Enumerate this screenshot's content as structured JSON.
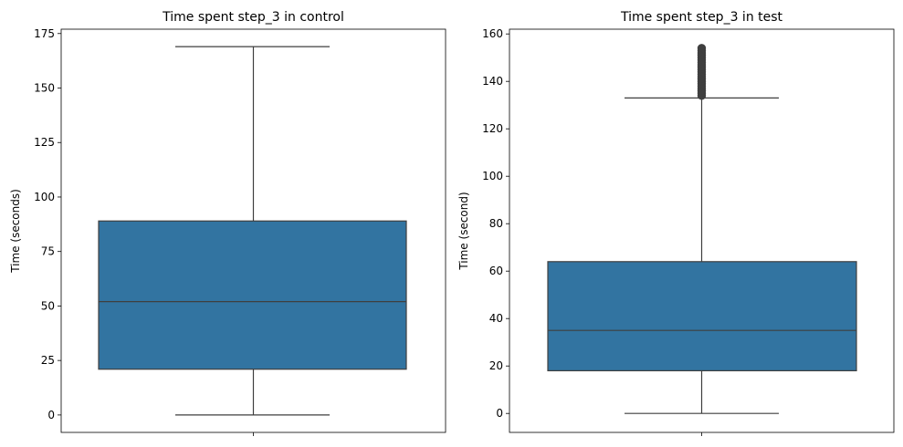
{
  "chart_data": [
    {
      "type": "box",
      "title": "Time spent step_3 in control",
      "xlabel": "",
      "ylabel": "Time (seconds)",
      "ylim": [
        -8,
        177
      ],
      "yticks": [
        0,
        25,
        50,
        75,
        100,
        125,
        150,
        175
      ],
      "box": {
        "whisker_low": 0,
        "q1": 21,
        "median": 52,
        "q3": 89,
        "whisker_high": 169
      },
      "outliers": [],
      "color": "#3274a1",
      "line_color": "#3f3f3f"
    },
    {
      "type": "box",
      "title": "Time spent step_3 in test",
      "xlabel": "",
      "ylabel": "Time (second)",
      "ylim": [
        -8,
        162
      ],
      "yticks": [
        0,
        20,
        40,
        60,
        80,
        100,
        120,
        140,
        160
      ],
      "box": {
        "whisker_low": 0,
        "q1": 18,
        "median": 35,
        "q3": 64,
        "whisker_high": 133
      },
      "outliers": [
        134,
        135,
        136,
        137,
        138,
        139,
        140,
        141,
        142,
        143,
        144,
        145,
        146,
        147,
        148,
        149,
        150,
        151,
        152,
        153,
        154
      ],
      "color": "#3274a1",
      "line_color": "#3f3f3f"
    }
  ]
}
